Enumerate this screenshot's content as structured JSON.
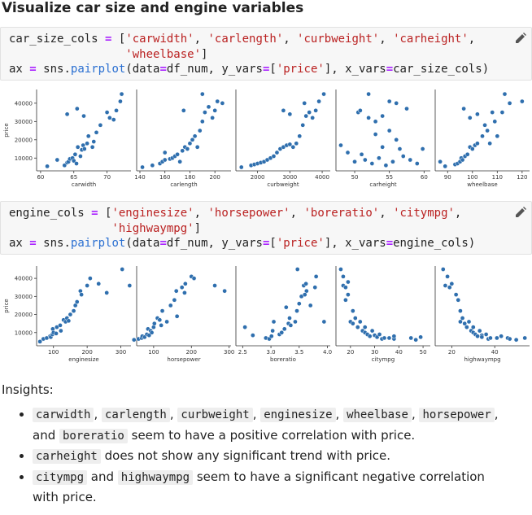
{
  "heading": "Visualize car size and engine variables",
  "cells": [
    {
      "code": [
        [
          "car_size_cols ",
          "=",
          " [",
          "'carwidth'",
          ", ",
          "'carlength'",
          ", ",
          "'curbweight'",
          ", ",
          "'carheight'",
          ","
        ],
        [
          "                 'wheelbase'",
          "]"
        ],
        [
          "ax ",
          "=",
          " sns.",
          "pairplot",
          "(data",
          "=",
          "df_num, y_vars",
          "=",
          "[",
          "'price'",
          "], x_vars",
          "=",
          "car_size_cols)"
        ]
      ]
    },
    {
      "code": [
        [
          "engine_cols ",
          "=",
          " [",
          "'enginesize'",
          ", ",
          "'horsepower'",
          ", ",
          "'boreratio'",
          ", ",
          "'citympg'",
          ","
        ],
        [
          "               'highwaympg'",
          "]"
        ],
        [
          "ax ",
          "=",
          " sns.",
          "pairplot",
          "(data",
          "=",
          "df_num, y_vars",
          "=",
          "[",
          "'price'",
          "], x_vars",
          "=",
          "engine_cols)"
        ]
      ]
    }
  ],
  "chart_data": [
    {
      "type": "scatter",
      "xlabel": "carwidth",
      "ylabel": "price",
      "color": "#2f6fae",
      "x": [
        63.6,
        64,
        64.2,
        64.4,
        64.8,
        65,
        65.2,
        65.4,
        65.6,
        66,
        66.2,
        66.4,
        66.6,
        67,
        67.2,
        67.8,
        68,
        68.4,
        69,
        70,
        70.4,
        71,
        71.4,
        72,
        72.2,
        62.5,
        61,
        64,
        65.5,
        66.5
      ],
      "values": [
        6000,
        7500,
        8000,
        9500,
        10000,
        8500,
        12000,
        7000,
        16000,
        11000,
        14500,
        17000,
        15000,
        18000,
        22000,
        16000,
        19000,
        24000,
        28000,
        35000,
        32000,
        31000,
        36000,
        41000,
        45000,
        9000,
        5500,
        34000,
        37000,
        33000
      ],
      "xlim": [
        59.4,
        73.6
      ],
      "xticks": [
        60,
        65,
        70
      ],
      "ylim": [
        3000,
        47500
      ],
      "yticks": [
        10000,
        20000,
        30000,
        40000
      ]
    },
    {
      "type": "scatter",
      "xlabel": "carlength",
      "color": "#2f6fae",
      "x": [
        142,
        150,
        156,
        158,
        160,
        164,
        166,
        168,
        170,
        172,
        174,
        176,
        178,
        180,
        182,
        184,
        186,
        188,
        190,
        192,
        195,
        198,
        200,
        202,
        206,
        190,
        175,
        160
      ],
      "values": [
        5000,
        6000,
        7000,
        8000,
        9000,
        9500,
        10000,
        11000,
        12000,
        8000,
        14000,
        16000,
        15000,
        18000,
        20000,
        22000,
        16000,
        25000,
        30000,
        35000,
        38000,
        32000,
        36000,
        41000,
        40000,
        45000,
        36000,
        13000
      ],
      "xlim": [
        137.4,
        212.9
      ],
      "xticks": [
        140,
        160,
        180,
        200
      ],
      "ylim": [
        3000,
        47500
      ]
    },
    {
      "type": "scatter",
      "xlabel": "curbweight",
      "color": "#2f6fae",
      "x": [
        1500,
        1800,
        1900,
        2000,
        2100,
        2200,
        2300,
        2400,
        2500,
        2600,
        2700,
        2800,
        2900,
        3000,
        3100,
        3200,
        3300,
        3400,
        3500,
        3600,
        3700,
        3800,
        3900,
        4050,
        2800,
        3000,
        3450
      ],
      "values": [
        5000,
        6000,
        6500,
        7000,
        7500,
        8000,
        9000,
        10000,
        11000,
        13000,
        15000,
        16000,
        17000,
        17500,
        16000,
        18000,
        22000,
        28000,
        33000,
        35000,
        32000,
        36000,
        41000,
        45000,
        36000,
        34000,
        40000
      ],
      "xlim": [
        1330,
        4250
      ],
      "xticks": [
        2000,
        3000,
        4000
      ],
      "ylim": [
        3000,
        47500
      ]
    },
    {
      "type": "scatter",
      "xlabel": "carheight",
      "color": "#2f6fae",
      "x": [
        48,
        49,
        50,
        50.5,
        51,
        51.5,
        52,
        52.5,
        53,
        53.5,
        54,
        54.5,
        55,
        55.5,
        56,
        56.5,
        57,
        58,
        59,
        59.8,
        50.8,
        53,
        54,
        55,
        56,
        52,
        57.5
      ],
      "values": [
        17000,
        13000,
        8000,
        35000,
        12000,
        9000,
        45000,
        7000,
        30000,
        10000,
        16000,
        6000,
        25000,
        8000,
        40000,
        15000,
        11000,
        9000,
        7000,
        15000,
        36000,
        23000,
        33000,
        41000,
        20000,
        32000,
        37000
      ],
      "xlim": [
        47.3,
        60.9
      ],
      "xticks": [
        50,
        55,
        60
      ],
      "ylim": [
        3000,
        47500
      ]
    },
    {
      "type": "scatter",
      "xlabel": "wheelbase",
      "color": "#2f6fae",
      "x": [
        87,
        89,
        93,
        94,
        95,
        95.5,
        96,
        97,
        98,
        99,
        100,
        101,
        102,
        104,
        105,
        106,
        107,
        108,
        109,
        110,
        112,
        113,
        115,
        120,
        96.5,
        99,
        102
      ],
      "values": [
        8000,
        5500,
        6500,
        7000,
        8000,
        10000,
        9000,
        11000,
        12000,
        16000,
        15000,
        17000,
        18000,
        22000,
        28000,
        25000,
        18000,
        35000,
        30000,
        22000,
        35000,
        45000,
        40000,
        41000,
        37000,
        32000,
        34000
      ],
      "xlim": [
        85,
        123
      ],
      "xticks": [
        90,
        100,
        110,
        120
      ],
      "ylim": [
        3000,
        47500
      ]
    },
    {
      "type": "scatter",
      "xlabel": "enginesize",
      "ylabel": "price",
      "color": "#2f6fae",
      "x": [
        60,
        70,
        80,
        90,
        92,
        97,
        98,
        100,
        108,
        110,
        120,
        122,
        130,
        136,
        140,
        145,
        150,
        160,
        165,
        170,
        180,
        183,
        200,
        209,
        234,
        258,
        304,
        326
      ],
      "values": [
        5000,
        6500,
        7000,
        8000,
        7500,
        9000,
        12000,
        10000,
        9500,
        13000,
        14000,
        11000,
        17000,
        16000,
        18000,
        16500,
        20000,
        22000,
        25000,
        27000,
        33000,
        31000,
        36000,
        40000,
        37000,
        32000,
        45000,
        36000
      ],
      "xlim": [
        50,
        330
      ],
      "xticks": [
        100,
        200,
        300
      ],
      "ylim": [
        2700,
        46800
      ],
      "yticks": [
        10000,
        20000,
        30000,
        40000
      ]
    },
    {
      "type": "scatter",
      "xlabel": "horsepower",
      "color": "#2f6fae",
      "x": [
        48,
        60,
        68,
        70,
        76,
        82,
        85,
        88,
        92,
        95,
        100,
        102,
        110,
        116,
        120,
        123,
        135,
        145,
        155,
        160,
        162,
        175,
        182,
        184,
        200,
        207,
        262,
        288
      ],
      "values": [
        6000,
        6500,
        7000,
        8000,
        7500,
        9000,
        12000,
        8500,
        11000,
        10000,
        13000,
        15000,
        18000,
        17000,
        14000,
        22000,
        16000,
        25000,
        28000,
        33000,
        19000,
        35000,
        32000,
        37000,
        41000,
        40000,
        36000,
        33000
      ],
      "xlim": [
        55,
        305
      ],
      "xticks": [
        100,
        200,
        300
      ],
      "ylim": [
        2700,
        46800
      ]
    },
    {
      "type": "scatter",
      "xlabel": "boreratio",
      "color": "#2f6fae",
      "x": [
        2.54,
        2.68,
        2.91,
        2.97,
        3.01,
        3.03,
        3.05,
        3.15,
        3.19,
        3.24,
        3.27,
        3.31,
        3.33,
        3.35,
        3.43,
        3.46,
        3.5,
        3.54,
        3.58,
        3.62,
        3.63,
        3.7,
        3.78,
        3.8,
        3.94,
        3.47,
        3.6
      ],
      "values": [
        13000,
        8500,
        7000,
        6500,
        8000,
        11000,
        16000,
        9000,
        10000,
        12000,
        24000,
        15000,
        18000,
        14000,
        16000,
        22000,
        26000,
        30000,
        36000,
        37000,
        33000,
        25000,
        35000,
        41000,
        16000,
        45000,
        31000
      ],
      "xlim": [
        2.38,
        4.05
      ],
      "xticks": [
        2.5,
        {
          "value": 3,
          "label": "3.0"
        },
        3.5,
        {
          "value": 4,
          "label": "4.0"
        }
      ],
      "ylim": [
        2700,
        46800
      ]
    },
    {
      "type": "scatter",
      "xlabel": "citympg",
      "color": "#2f6fae",
      "x": [
        16,
        17,
        17,
        18,
        18,
        19,
        19,
        20,
        21,
        21,
        22,
        23,
        24,
        25,
        26,
        26,
        27,
        28,
        29,
        30,
        31,
        32,
        33,
        34,
        36,
        38,
        38,
        45,
        47,
        49
      ],
      "values": [
        45000,
        36000,
        41000,
        35000,
        28000,
        31000,
        38000,
        16000,
        15000,
        22000,
        18000,
        13000,
        16000,
        11000,
        10000,
        13000,
        9000,
        8000,
        11000,
        8500,
        7500,
        9000,
        6500,
        7000,
        7000,
        6500,
        8000,
        7000,
        6000,
        7500
      ],
      "xlim": [
        14,
        53
      ],
      "xticks": [
        20,
        30,
        40,
        50
      ],
      "ylim": [
        2700,
        46800
      ]
    },
    {
      "type": "scatter",
      "xlabel": "highwaympg",
      "color": "#2f6fae",
      "x": [
        16,
        17,
        18,
        19,
        20,
        22,
        23,
        24,
        24,
        25,
        26,
        27,
        28,
        29,
        30,
        30,
        31,
        32,
        33,
        34,
        34,
        36,
        37,
        38,
        41,
        43,
        46,
        47,
        50,
        54
      ],
      "values": [
        45000,
        36000,
        41000,
        35000,
        37000,
        31000,
        28000,
        16000,
        22000,
        18000,
        15000,
        13000,
        16000,
        11000,
        10000,
        13000,
        9000,
        8000,
        11000,
        8500,
        7500,
        9000,
        6500,
        7000,
        7000,
        8000,
        7000,
        6500,
        6000,
        7000
      ],
      "xlim": [
        12.3,
        56.2
      ],
      "xticks": [
        20,
        40
      ],
      "ylim": [
        2700,
        46800
      ]
    }
  ],
  "insights": {
    "label": "Insights:",
    "bullets": [
      [
        {
          "code": "carwidth"
        },
        ", ",
        {
          "code": "carlength"
        },
        ", ",
        {
          "code": "curbweight"
        },
        ", ",
        {
          "code": "enginesize"
        },
        ", ",
        {
          "code": "wheelbase"
        },
        ", ",
        {
          "code": "horsepower"
        },
        ", and ",
        {
          "code": "boreratio"
        },
        " seem to have a positive correlation with price."
      ],
      [
        {
          "code": "carheight"
        },
        " does not show any significant trend with price."
      ],
      [
        {
          "code": "citympg"
        },
        " and ",
        {
          "code": "highwaympg"
        },
        " seem to have a significant negative correlation with price."
      ]
    ]
  }
}
